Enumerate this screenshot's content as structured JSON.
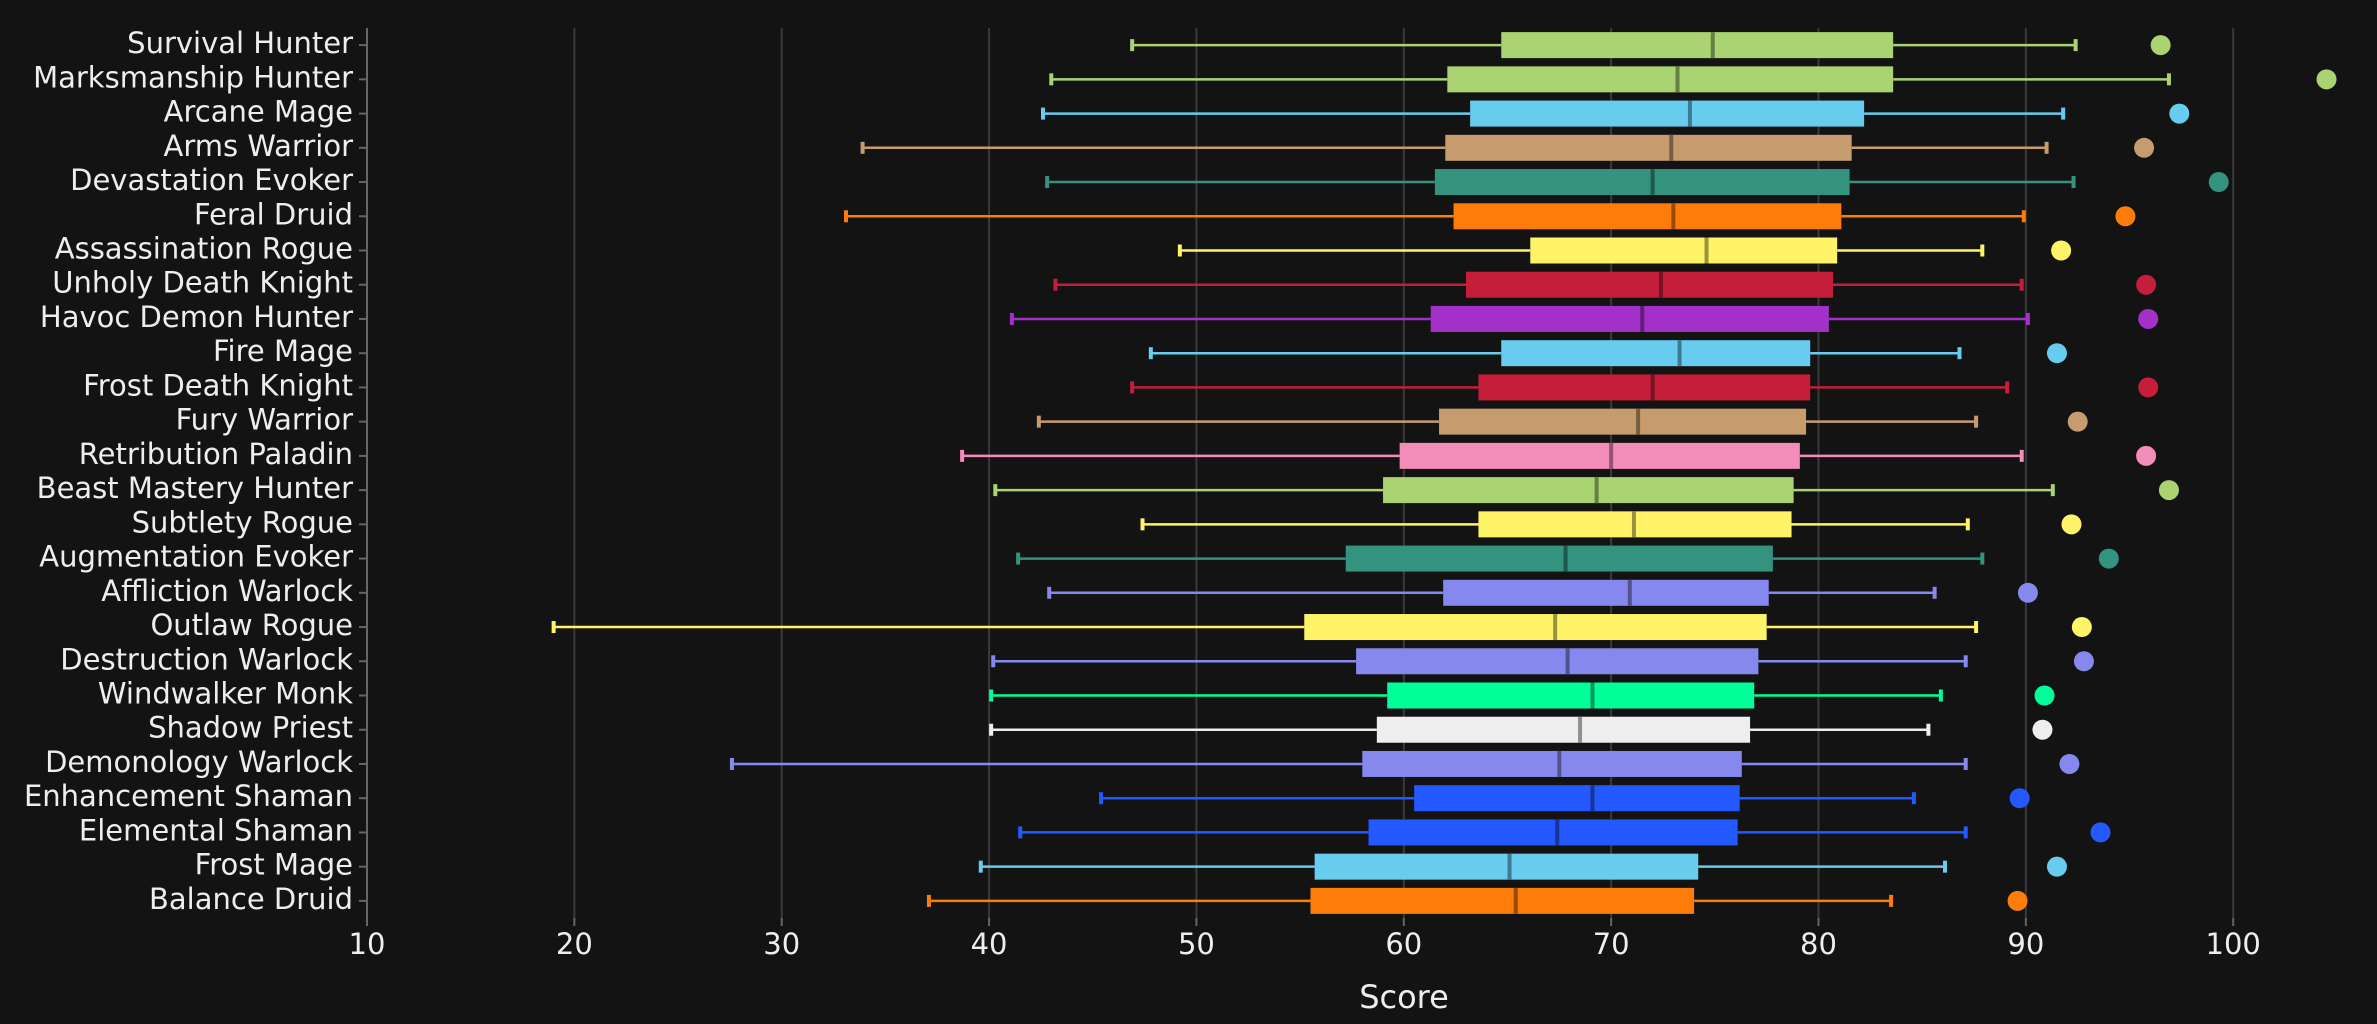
{
  "chart_data": {
    "type": "boxplot",
    "orientation": "horizontal",
    "x_label": "Score",
    "xlim": [
      10,
      106.5
    ],
    "xticks": [
      10,
      20,
      30,
      40,
      50,
      60,
      70,
      80,
      90,
      100
    ],
    "grid": true,
    "categories": [
      "Survival Hunter",
      "Marksmanship Hunter",
      "Arcane Mage",
      "Arms Warrior",
      "Devastation Evoker",
      "Feral Druid",
      "Assassination Rogue",
      "Unholy Death Knight",
      "Havoc Demon Hunter",
      "Fire Mage",
      "Frost Death Knight",
      "Fury Warrior",
      "Retribution Paladin",
      "Beast Mastery Hunter",
      "Subtlety Rogue",
      "Augmentation Evoker",
      "Affliction Warlock",
      "Outlaw Rogue",
      "Destruction Warlock",
      "Windwalker Monk",
      "Shadow Priest",
      "Demonology Warlock",
      "Enhancement Shaman",
      "Elemental Shaman",
      "Frost Mage",
      "Balance Druid"
    ],
    "colors": [
      "#aad372",
      "#aad372",
      "#68ccef",
      "#c69b6d",
      "#33937f",
      "#ff7c0a",
      "#fff468",
      "#c41e3a",
      "#a330c9",
      "#68ccef",
      "#c41e3a",
      "#c69b6d",
      "#f48cba",
      "#aad372",
      "#fff468",
      "#33937f",
      "#8788ee",
      "#fff468",
      "#8788ee",
      "#00ff98",
      "#eeeeee",
      "#8788ee",
      "#2459ff",
      "#2459ff",
      "#68ccef",
      "#ff7c0a"
    ],
    "whisker_low": [
      46.9,
      43.0,
      42.6,
      33.9,
      42.8,
      33.1,
      49.2,
      43.2,
      41.1,
      47.8,
      46.9,
      42.4,
      38.7,
      40.3,
      47.4,
      41.4,
      42.9,
      19.0,
      40.2,
      40.1,
      40.1,
      27.6,
      45.4,
      41.5,
      39.6,
      37.1
    ],
    "q1": [
      64.7,
      62.1,
      63.2,
      62.0,
      61.5,
      62.4,
      66.1,
      63.0,
      61.3,
      64.7,
      63.6,
      61.7,
      59.8,
      59.0,
      63.6,
      57.2,
      61.9,
      55.2,
      57.7,
      59.2,
      58.7,
      58.0,
      60.5,
      58.3,
      55.7,
      55.5
    ],
    "median": [
      74.9,
      73.2,
      73.8,
      72.9,
      72.0,
      73.0,
      74.6,
      72.4,
      71.5,
      73.3,
      72.0,
      71.3,
      70.0,
      69.3,
      71.1,
      67.8,
      70.9,
      67.3,
      67.9,
      69.1,
      68.5,
      67.5,
      69.1,
      67.4,
      65.1,
      65.4
    ],
    "q3": [
      83.6,
      83.6,
      82.2,
      81.6,
      81.5,
      81.1,
      80.9,
      80.7,
      80.5,
      79.6,
      79.6,
      79.4,
      79.1,
      78.8,
      78.7,
      77.8,
      77.6,
      77.5,
      77.1,
      76.9,
      76.7,
      76.3,
      76.2,
      76.1,
      74.2,
      74.0
    ],
    "whisker_high": [
      92.4,
      96.9,
      91.8,
      91.0,
      92.3,
      89.9,
      87.9,
      89.8,
      90.1,
      86.8,
      89.1,
      87.6,
      89.8,
      91.3,
      87.2,
      87.9,
      85.6,
      87.6,
      87.1,
      85.9,
      85.3,
      87.1,
      84.6,
      87.1,
      86.1,
      83.5
    ],
    "outliers": [
      96.5,
      104.5,
      97.4,
      95.7,
      99.3,
      94.8,
      91.7,
      95.8,
      95.9,
      91.5,
      95.9,
      92.5,
      95.8,
      96.9,
      92.2,
      94.0,
      90.1,
      92.7,
      92.8,
      90.9,
      90.8,
      92.1,
      89.7,
      93.6,
      91.5,
      89.6
    ]
  }
}
